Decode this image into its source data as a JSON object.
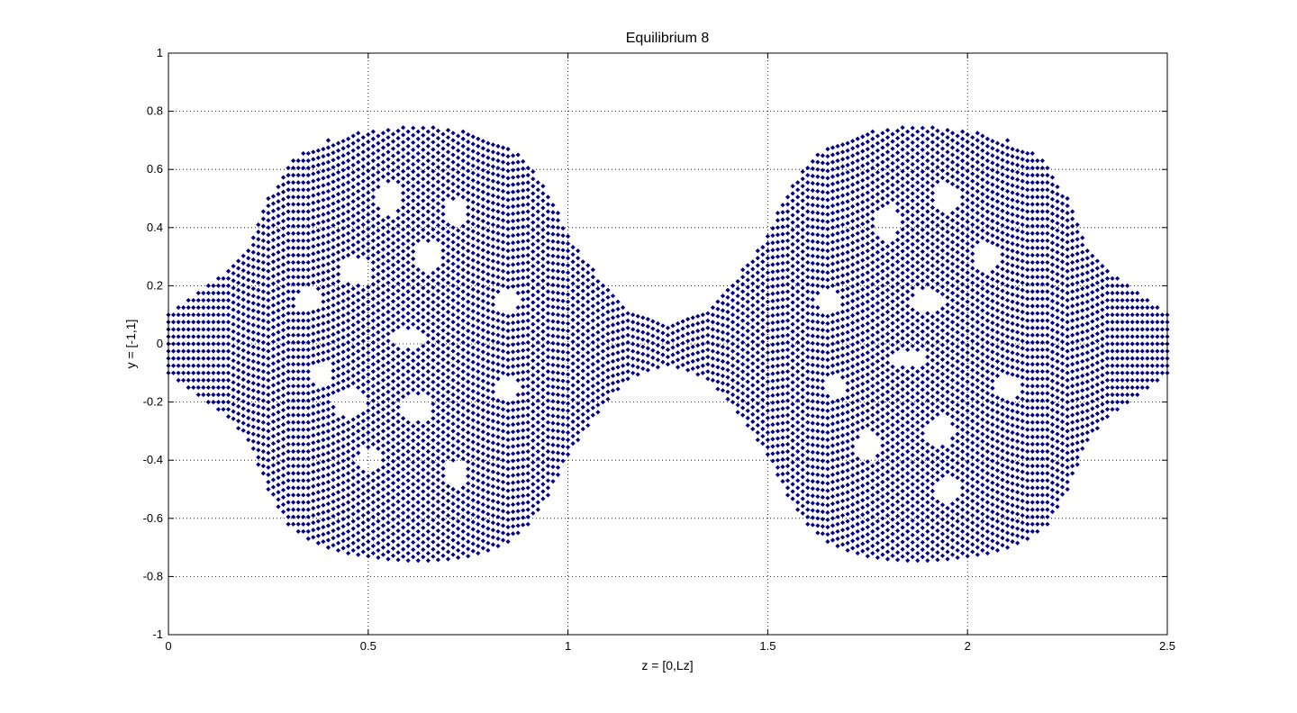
{
  "chart_data": {
    "type": "scatter",
    "title": "Equilibrium 8",
    "xlabel": "z = [0,Lz]",
    "ylabel": "y = [-1,1]",
    "xlim": [
      0,
      2.5
    ],
    "ylim": [
      -1,
      1
    ],
    "xticks": [
      0,
      0.5,
      1,
      1.5,
      2,
      2.5
    ],
    "xtick_labels": [
      "0",
      "0.5",
      "1",
      "1.5",
      "2",
      "2.5"
    ],
    "yticks": [
      -1,
      -0.8,
      -0.6,
      -0.4,
      -0.2,
      0,
      0.2,
      0.4,
      0.6,
      0.8,
      1
    ],
    "ytick_labels": [
      "-1",
      "-0.8",
      "-0.6",
      "-0.4",
      "-0.2",
      "0",
      "0.2",
      "0.4",
      "0.6",
      "0.8",
      "1"
    ],
    "grid": true,
    "marker": "diamond",
    "marker_color": "#00008b",
    "grid_spacing": {
      "dx": 0.0125,
      "dy": 0.025
    },
    "point_count_note": "dense lattice of points forming two symmetric lobes",
    "envelope": {
      "z": [
        0,
        0.05,
        0.1,
        0.15,
        0.2,
        0.25,
        0.3,
        0.35,
        0.4,
        0.45,
        0.5,
        0.55,
        0.6,
        0.65,
        0.7,
        0.75,
        0.8,
        0.85,
        0.9,
        0.95,
        1.0,
        1.05,
        1.1,
        1.15,
        1.2,
        1.25
      ],
      "y_half_width": [
        0.1,
        0.15,
        0.2,
        0.25,
        0.33,
        0.5,
        0.62,
        0.67,
        0.7,
        0.72,
        0.73,
        0.74,
        0.745,
        0.745,
        0.74,
        0.73,
        0.71,
        0.68,
        0.62,
        0.52,
        0.38,
        0.28,
        0.19,
        0.12,
        0.09,
        0.07
      ]
    },
    "holes": [
      {
        "z": 0.55,
        "y": 0.5,
        "rz": 0.03,
        "ry": 0.06
      },
      {
        "z": 0.47,
        "y": 0.25,
        "rz": 0.04,
        "ry": 0.05
      },
      {
        "z": 0.65,
        "y": 0.3,
        "rz": 0.035,
        "ry": 0.05
      },
      {
        "z": 0.72,
        "y": 0.45,
        "rz": 0.03,
        "ry": 0.05
      },
      {
        "z": 0.6,
        "y": 0.02,
        "rz": 0.05,
        "ry": 0.03
      },
      {
        "z": 0.45,
        "y": -0.2,
        "rz": 0.04,
        "ry": 0.05
      },
      {
        "z": 0.62,
        "y": -0.22,
        "rz": 0.035,
        "ry": 0.05
      },
      {
        "z": 0.5,
        "y": -0.4,
        "rz": 0.03,
        "ry": 0.04
      },
      {
        "z": 0.72,
        "y": -0.45,
        "rz": 0.03,
        "ry": 0.05
      },
      {
        "z": 0.35,
        "y": 0.15,
        "rz": 0.03,
        "ry": 0.04
      },
      {
        "z": 0.38,
        "y": -0.1,
        "rz": 0.03,
        "ry": 0.04
      },
      {
        "z": 0.85,
        "y": 0.15,
        "rz": 0.03,
        "ry": 0.04
      },
      {
        "z": 0.85,
        "y": -0.15,
        "rz": 0.03,
        "ry": 0.04
      },
      {
        "z": 1.8,
        "y": 0.42,
        "rz": 0.03,
        "ry": 0.06
      },
      {
        "z": 1.95,
        "y": 0.5,
        "rz": 0.035,
        "ry": 0.05
      },
      {
        "z": 1.9,
        "y": 0.15,
        "rz": 0.04,
        "ry": 0.04
      },
      {
        "z": 2.05,
        "y": 0.3,
        "rz": 0.03,
        "ry": 0.05
      },
      {
        "z": 1.85,
        "y": -0.05,
        "rz": 0.05,
        "ry": 0.03
      },
      {
        "z": 1.93,
        "y": -0.3,
        "rz": 0.035,
        "ry": 0.05
      },
      {
        "z": 1.95,
        "y": -0.5,
        "rz": 0.03,
        "ry": 0.05
      },
      {
        "z": 1.75,
        "y": -0.35,
        "rz": 0.03,
        "ry": 0.05
      },
      {
        "z": 2.1,
        "y": -0.15,
        "rz": 0.03,
        "ry": 0.04
      },
      {
        "z": 1.65,
        "y": 0.15,
        "rz": 0.03,
        "ry": 0.04
      },
      {
        "z": 1.67,
        "y": -0.15,
        "rz": 0.03,
        "ry": 0.04
      }
    ]
  }
}
